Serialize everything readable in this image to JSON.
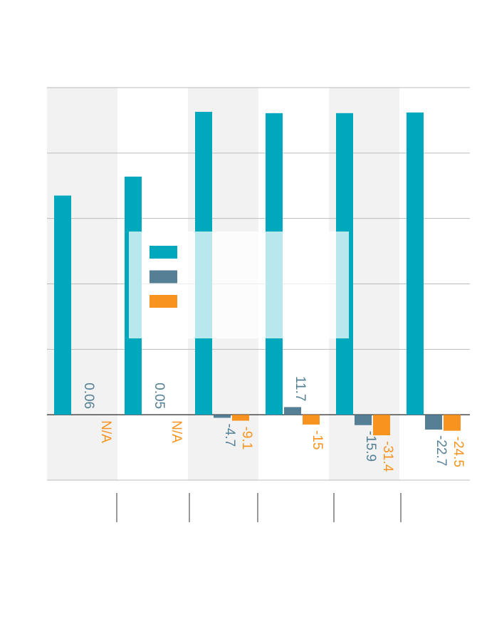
{
  "chart_data": {
    "type": "bar",
    "categories": [
      null,
      null,
      null,
      null,
      null,
      null
    ],
    "series": [
      {
        "name": null,
        "color": "#00a8bd",
        "values": [
          335,
          364,
          463,
          461,
          461,
          462
        ]
      },
      {
        "name": null,
        "color": "#557f94",
        "values": [
          0.06,
          0.05,
          -4.7,
          11.7,
          -15.9,
          -22.7
        ]
      },
      {
        "name": null,
        "color": "#f7931e",
        "values": [
          null,
          null,
          -9.1,
          -15,
          -31.4,
          -24.5
        ],
        "value_labels": [
          "N/A",
          "N/A",
          "-9.1",
          "-15",
          "-31.4",
          "-24.5"
        ]
      }
    ],
    "ylim": [
      -100,
      500
    ],
    "yticks": [
      -100,
      0,
      100,
      200,
      300,
      400,
      500
    ],
    "grid": true
  }
}
